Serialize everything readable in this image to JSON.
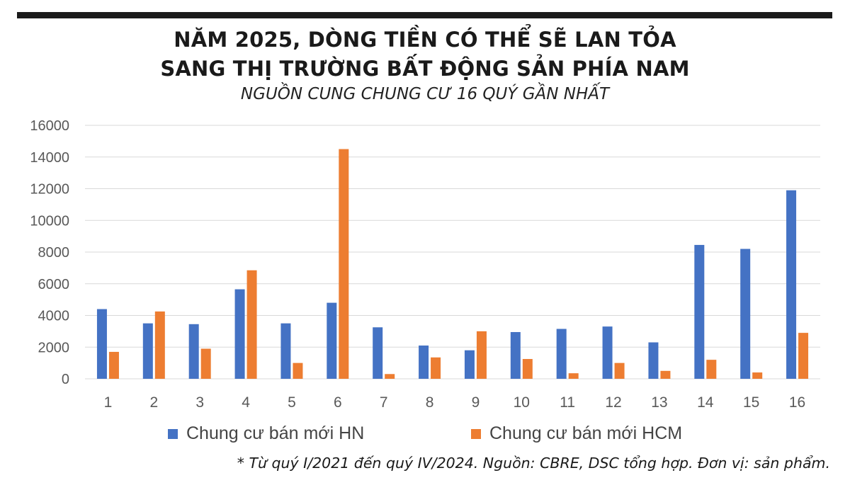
{
  "header": {
    "title_line1": "NĂM 2025, DÒNG TIỀN CÓ THỂ SẼ LAN TỎA",
    "title_line2": "SANG THỊ TRƯỜNG BẤT ĐỘNG SẢN PHÍA NAM",
    "subtitle": "NGUỒN CUNG CHUNG CƯ 16 QUÝ GẦN NHẤT"
  },
  "footnote": "* Từ quý I/2021 đến quý IV/2024. Nguồn: CBRE, DSC tổng hợp. Đơn vị: sản phẩm.",
  "colors": {
    "hn": "#4472c4",
    "hcm": "#ed7d31",
    "grid": "#d9d9d9",
    "tick_text": "#595959"
  },
  "chart_data": {
    "type": "bar",
    "categories": [
      "1",
      "2",
      "3",
      "4",
      "5",
      "6",
      "7",
      "8",
      "9",
      "10",
      "11",
      "12",
      "13",
      "14",
      "15",
      "16"
    ],
    "series": [
      {
        "name": "Chung cư bán mới HN",
        "values": [
          4400,
          3500,
          3450,
          5650,
          3500,
          4800,
          3250,
          2100,
          1800,
          2950,
          3150,
          3300,
          2300,
          8450,
          8200,
          11900
        ]
      },
      {
        "name": "Chung cư bán mới HCM",
        "values": [
          1700,
          4250,
          1900,
          6850,
          1000,
          14500,
          300,
          1350,
          3000,
          1250,
          350,
          1000,
          500,
          1200,
          400,
          2900
        ]
      }
    ],
    "yticks": [
      "0",
      "2000",
      "4000",
      "6000",
      "8000",
      "10000",
      "12000",
      "14000",
      "16000"
    ],
    "ylim": [
      0,
      16000
    ],
    "grid": true,
    "legend_position": "bottom"
  }
}
